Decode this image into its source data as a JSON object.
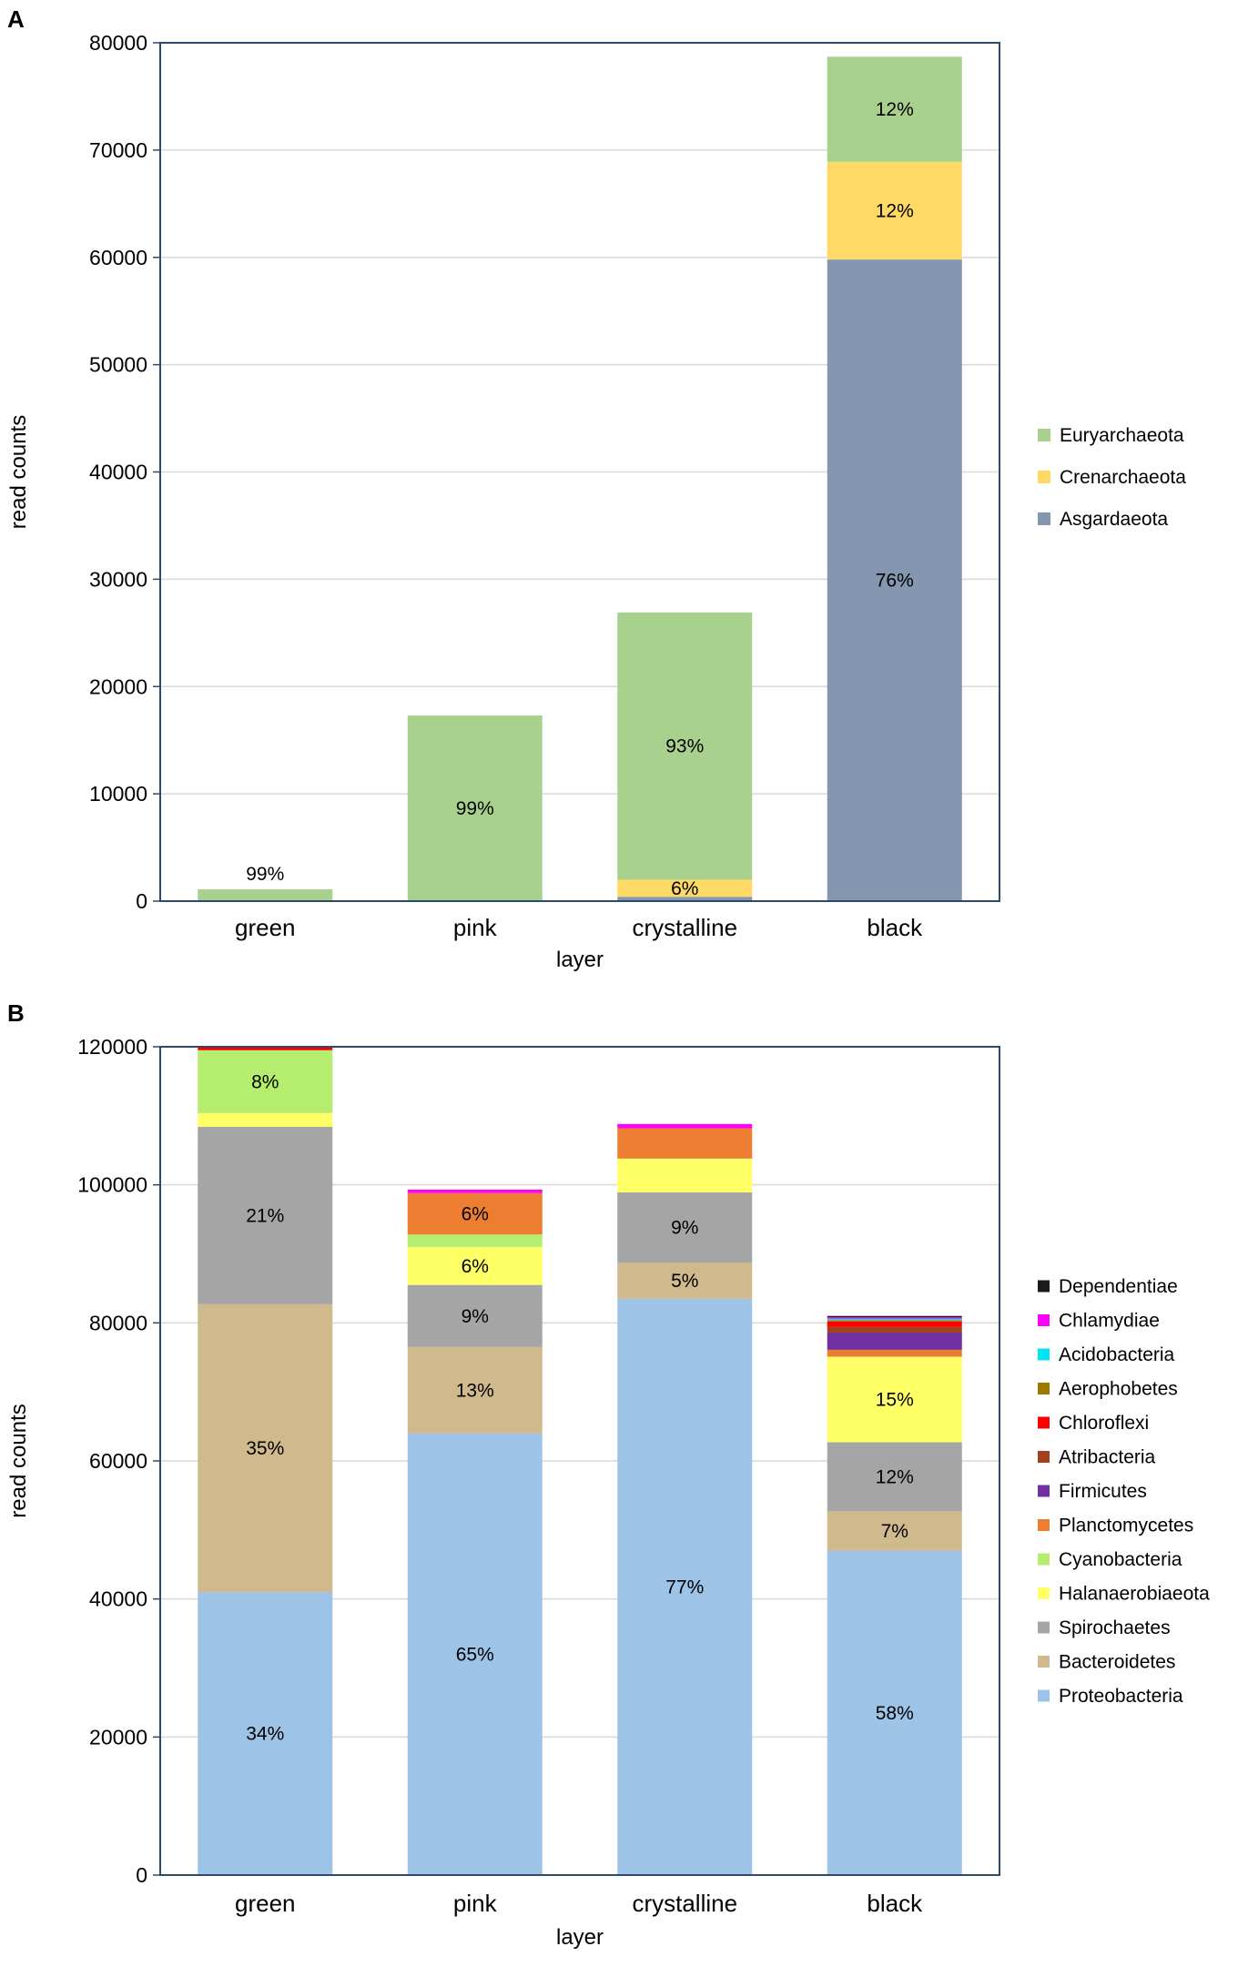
{
  "chart_data": [
    {
      "panel_label": "A",
      "type": "bar",
      "stacked": true,
      "categories": [
        "green",
        "pink",
        "crystalline",
        "black"
      ],
      "series": [
        {
          "name": "Asgardaeota",
          "color": "#8496b0",
          "values": [
            0,
            0,
            400,
            59800
          ]
        },
        {
          "name": "Crenarchaeota",
          "color": "#ffd966",
          "values": [
            0,
            0,
            1600,
            9100
          ]
        },
        {
          "name": "Euryarchaeota",
          "color": "#a9d18e",
          "values": [
            1100,
            17300,
            24900,
            9800
          ]
        }
      ],
      "legend_order": [
        "Euryarchaeota",
        "Crenarchaeota",
        "Asgardaeota"
      ],
      "data_labels": [
        {
          "category": "green",
          "series": "Euryarchaeota",
          "text": "99%",
          "placement": "above"
        },
        {
          "category": "pink",
          "series": "Euryarchaeota",
          "text": "99%",
          "placement": "inside"
        },
        {
          "category": "crystalline",
          "series": "Euryarchaeota",
          "text": "93%",
          "placement": "inside"
        },
        {
          "category": "crystalline",
          "series": "Crenarchaeota",
          "text": "6%",
          "placement": "inside"
        },
        {
          "category": "black",
          "series": "Euryarchaeota",
          "text": "12%",
          "placement": "inside"
        },
        {
          "category": "black",
          "series": "Crenarchaeota",
          "text": "12%",
          "placement": "inside"
        },
        {
          "category": "black",
          "series": "Asgardaeota",
          "text": "76%",
          "placement": "inside"
        }
      ],
      "xlabel": "layer",
      "ylabel": "read counts",
      "ylim": [
        0,
        80000
      ],
      "yticks": [
        0,
        10000,
        20000,
        30000,
        40000,
        50000,
        60000,
        70000,
        80000
      ],
      "grid": true,
      "legend_position": "right"
    },
    {
      "panel_label": "B",
      "type": "bar",
      "stacked": true,
      "categories": [
        "green",
        "pink",
        "crystalline",
        "black"
      ],
      "series": [
        {
          "name": "Proteobacteria",
          "color": "#9dc3e6",
          "values": [
            41000,
            64000,
            83500,
            47000
          ]
        },
        {
          "name": "Bacteroidetes",
          "color": "#cfb98d",
          "values": [
            41700,
            12500,
            5200,
            5700
          ]
        },
        {
          "name": "Spirochaetes",
          "color": "#a5a5a5",
          "values": [
            25700,
            9000,
            10200,
            10000
          ]
        },
        {
          "name": "Halanaerobiaeota",
          "color": "#ffff66",
          "values": [
            2000,
            5500,
            4900,
            12400
          ]
        },
        {
          "name": "Cyanobacteria",
          "color": "#b5ed6e",
          "values": [
            9100,
            1800,
            0,
            0
          ]
        },
        {
          "name": "Planctomycetes",
          "color": "#ed7d31",
          "values": [
            0,
            6000,
            4400,
            1000
          ]
        },
        {
          "name": "Firmicutes",
          "color": "#7030a0",
          "values": [
            0,
            0,
            0,
            2500
          ]
        },
        {
          "name": "Atribacteria",
          "color": "#a0421c",
          "values": [
            0,
            0,
            0,
            800
          ]
        },
        {
          "name": "Chloroflexi",
          "color": "#ff0000",
          "values": [
            400,
            0,
            0,
            800
          ]
        },
        {
          "name": "Aerophobetes",
          "color": "#9c7a00",
          "values": [
            0,
            0,
            0,
            200
          ]
        },
        {
          "name": "Acidobacteria",
          "color": "#00e5ee",
          "values": [
            0,
            0,
            0,
            200
          ]
        },
        {
          "name": "Chlamydiae",
          "color": "#ff00ff",
          "values": [
            0,
            500,
            600,
            200
          ]
        },
        {
          "name": "Dependentiae",
          "color": "#1a1a1a",
          "values": [
            0,
            0,
            0,
            200
          ]
        }
      ],
      "legend_order": [
        "Dependentiae",
        "Chlamydiae",
        "Acidobacteria",
        "Aerophobetes",
        "Chloroflexi",
        "Atribacteria",
        "Firmicutes",
        "Planctomycetes",
        "Cyanobacteria",
        "Halanaerobiaeota",
        "Spirochaetes",
        "Bacteroidetes",
        "Proteobacteria"
      ],
      "data_labels": [
        {
          "category": "green",
          "series": "Proteobacteria",
          "text": "34%",
          "placement": "inside"
        },
        {
          "category": "green",
          "series": "Bacteroidetes",
          "text": "35%",
          "placement": "inside"
        },
        {
          "category": "green",
          "series": "Spirochaetes",
          "text": "21%",
          "placement": "inside"
        },
        {
          "category": "green",
          "series": "Cyanobacteria",
          "text": "8%",
          "placement": "inside"
        },
        {
          "category": "pink",
          "series": "Proteobacteria",
          "text": "65%",
          "placement": "inside"
        },
        {
          "category": "pink",
          "series": "Bacteroidetes",
          "text": "13%",
          "placement": "inside"
        },
        {
          "category": "pink",
          "series": "Spirochaetes",
          "text": "9%",
          "placement": "inside"
        },
        {
          "category": "pink",
          "series": "Halanaerobiaeota",
          "text": "6%",
          "placement": "inside"
        },
        {
          "category": "pink",
          "series": "Planctomycetes",
          "text": "6%",
          "placement": "inside"
        },
        {
          "category": "crystalline",
          "series": "Proteobacteria",
          "text": "77%",
          "placement": "inside"
        },
        {
          "category": "crystalline",
          "series": "Bacteroidetes",
          "text": "5%",
          "placement": "inside"
        },
        {
          "category": "crystalline",
          "series": "Spirochaetes",
          "text": "9%",
          "placement": "inside"
        },
        {
          "category": "black",
          "series": "Proteobacteria",
          "text": "58%",
          "placement": "inside"
        },
        {
          "category": "black",
          "series": "Bacteroidetes",
          "text": "7%",
          "placement": "inside"
        },
        {
          "category": "black",
          "series": "Spirochaetes",
          "text": "12%",
          "placement": "inside"
        },
        {
          "category": "black",
          "series": "Halanaerobiaeota",
          "text": "15%",
          "placement": "inside"
        }
      ],
      "xlabel": "layer",
      "ylabel": "read counts",
      "ylim": [
        0,
        120000
      ],
      "yticks": [
        0,
        20000,
        40000,
        60000,
        80000,
        100000,
        120000
      ],
      "grid": true,
      "legend_position": "right"
    }
  ]
}
